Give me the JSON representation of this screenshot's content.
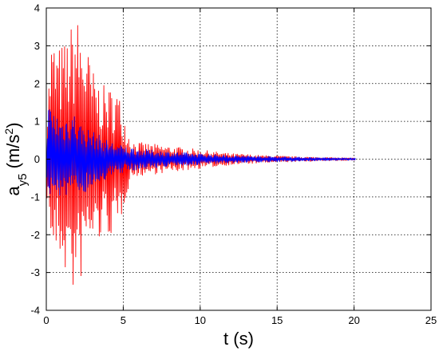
{
  "chart_data": {
    "type": "line",
    "title": "",
    "xlabel": "t (s)",
    "ylabel_base": "a",
    "ylabel_sub": "y5",
    "ylabel_unit_open": " (m/s",
    "ylabel_unit_sup": "2",
    "ylabel_unit_close": ")",
    "xlim": [
      0,
      25
    ],
    "ylim": [
      -4,
      4
    ],
    "xticks": [
      0,
      5,
      10,
      15,
      20,
      25
    ],
    "yticks": [
      -4,
      -3,
      -2,
      -1,
      0,
      1,
      2,
      3,
      4
    ],
    "grid": true,
    "legend": "none",
    "series": [
      {
        "color": "#ff0000",
        "envelope": [
          [
            0,
            0.9
          ],
          [
            0.3,
            3.3
          ],
          [
            0.8,
            3.0
          ],
          [
            1.3,
            3.2
          ],
          [
            1.9,
            3.9
          ],
          [
            2.4,
            3.4
          ],
          [
            3.0,
            2.4
          ],
          [
            3.5,
            2.0
          ],
          [
            4.0,
            1.9
          ],
          [
            4.6,
            1.9
          ],
          [
            5.0,
            1.3
          ],
          [
            5.5,
            0.5
          ],
          [
            6.0,
            0.45
          ],
          [
            7.0,
            0.4
          ],
          [
            8.0,
            0.35
          ],
          [
            9.0,
            0.3
          ],
          [
            10.0,
            0.25
          ],
          [
            11.0,
            0.2
          ],
          [
            12.0,
            0.15
          ],
          [
            13.0,
            0.13
          ],
          [
            14.0,
            0.1
          ],
          [
            15.0,
            0.09
          ],
          [
            16.0,
            0.07
          ],
          [
            17.0,
            0.06
          ],
          [
            18.0,
            0.05
          ],
          [
            19.0,
            0.04
          ],
          [
            20.1,
            0.03
          ]
        ],
        "neg_envelope": [
          [
            0,
            -0.9
          ],
          [
            0.4,
            -2.6
          ],
          [
            0.9,
            -2.7
          ],
          [
            1.4,
            -3.2
          ],
          [
            2.0,
            -3.9
          ],
          [
            2.5,
            -2.6
          ],
          [
            3.0,
            -2.3
          ],
          [
            3.5,
            -2.2
          ],
          [
            4.0,
            -2.0
          ],
          [
            4.6,
            -2.2
          ],
          [
            5.0,
            -1.3
          ],
          [
            5.5,
            -0.5
          ],
          [
            6.0,
            -0.45
          ],
          [
            7.0,
            -0.4
          ],
          [
            8.0,
            -0.35
          ],
          [
            9.0,
            -0.3
          ],
          [
            10.0,
            -0.25
          ],
          [
            11.0,
            -0.2
          ],
          [
            12.0,
            -0.15
          ],
          [
            13.0,
            -0.13
          ],
          [
            14.0,
            -0.1
          ],
          [
            15.0,
            -0.09
          ],
          [
            16.0,
            -0.07
          ],
          [
            17.0,
            -0.06
          ],
          [
            18.0,
            -0.05
          ],
          [
            19.0,
            -0.04
          ],
          [
            20.1,
            -0.03
          ]
        ]
      },
      {
        "color": "#0000ff",
        "envelope": [
          [
            0,
            1.5
          ],
          [
            0.4,
            1.4
          ],
          [
            1.0,
            1.1
          ],
          [
            1.7,
            1.35
          ],
          [
            2.2,
            0.95
          ],
          [
            3.0,
            0.75
          ],
          [
            4.0,
            0.5
          ],
          [
            5.0,
            0.35
          ],
          [
            6.0,
            0.28
          ],
          [
            8.0,
            0.2
          ],
          [
            10.0,
            0.15
          ],
          [
            12.0,
            0.1
          ],
          [
            14.0,
            0.08
          ],
          [
            16.0,
            0.06
          ],
          [
            18.0,
            0.04
          ],
          [
            20.1,
            0.03
          ]
        ],
        "neg_envelope": [
          [
            0,
            -1.0
          ],
          [
            0.4,
            -1.0
          ],
          [
            1.0,
            -1.0
          ],
          [
            1.7,
            -1.05
          ],
          [
            2.2,
            -0.95
          ],
          [
            3.0,
            -0.75
          ],
          [
            4.0,
            -0.5
          ],
          [
            5.0,
            -0.35
          ],
          [
            6.0,
            -0.28
          ],
          [
            8.0,
            -0.2
          ],
          [
            10.0,
            -0.15
          ],
          [
            12.0,
            -0.1
          ],
          [
            14.0,
            -0.08
          ],
          [
            16.0,
            -0.06
          ],
          [
            18.0,
            -0.04
          ],
          [
            20.1,
            -0.03
          ]
        ]
      }
    ]
  }
}
